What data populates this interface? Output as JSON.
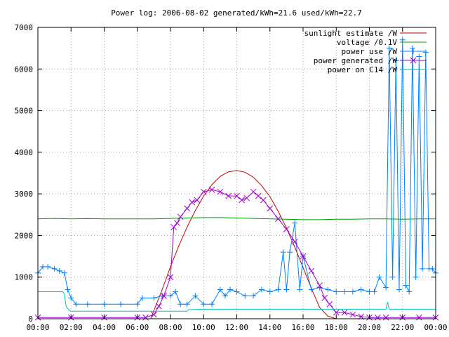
{
  "chart_data": {
    "type": "line",
    "title": "Power log: 2006-08-02 generated/kWh=21.6 used/kWh=22.7",
    "xlabel": "",
    "ylabel": "",
    "xlim": [
      0,
      24
    ],
    "ylim": [
      0,
      7000
    ],
    "grid": true,
    "legend_position": "top-right",
    "x_ticks": [
      {
        "value": 0,
        "label": "00:00"
      },
      {
        "value": 2,
        "label": "02:00"
      },
      {
        "value": 4,
        "label": "04:00"
      },
      {
        "value": 6,
        "label": "06:00"
      },
      {
        "value": 8,
        "label": "08:00"
      },
      {
        "value": 10,
        "label": "10:00"
      },
      {
        "value": 12,
        "label": "12:00"
      },
      {
        "value": 14,
        "label": "14:00"
      },
      {
        "value": 16,
        "label": "16:00"
      },
      {
        "value": 18,
        "label": "18:00"
      },
      {
        "value": 20,
        "label": "20:00"
      },
      {
        "value": 22,
        "label": "22:00"
      },
      {
        "value": 24,
        "label": "00:00"
      }
    ],
    "y_ticks": [
      {
        "value": 0,
        "label": "0"
      },
      {
        "value": 1000,
        "label": "1000"
      },
      {
        "value": 2000,
        "label": "2000"
      },
      {
        "value": 3000,
        "label": "3000"
      },
      {
        "value": 4000,
        "label": "4000"
      },
      {
        "value": 5000,
        "label": "5000"
      },
      {
        "value": 6000,
        "label": "6000"
      },
      {
        "value": 7000,
        "label": "7000"
      }
    ],
    "series": [
      {
        "name": "sunlight estimate /W",
        "color": "#cc0000",
        "style": "line",
        "x": [
          6.8,
          7.5,
          8.0,
          8.5,
          9.0,
          9.5,
          10.0,
          10.5,
          11.0,
          11.5,
          12.0,
          12.5,
          13.0,
          13.5,
          14.0,
          14.5,
          15.0,
          15.5,
          16.0,
          16.5,
          17.0,
          17.5,
          18.0
        ],
        "y": [
          0,
          700,
          1250,
          1750,
          2200,
          2600,
          2950,
          3220,
          3420,
          3530,
          3560,
          3520,
          3400,
          3200,
          2930,
          2580,
          2180,
          1720,
          1230,
          730,
          270,
          60,
          0
        ]
      },
      {
        "name": "voltage /0.1V",
        "color": "#00a000",
        "style": "line",
        "x": [
          0,
          1,
          2,
          3,
          4,
          5,
          6,
          7,
          8,
          9,
          10,
          11,
          12,
          13,
          14,
          15,
          16,
          17,
          18,
          19,
          20,
          21,
          22,
          23,
          24
        ],
        "y": [
          2400,
          2410,
          2400,
          2405,
          2400,
          2400,
          2400,
          2400,
          2410,
          2420,
          2430,
          2430,
          2420,
          2410,
          2400,
          2390,
          2380,
          2380,
          2390,
          2390,
          2400,
          2400,
          2390,
          2400,
          2400
        ]
      },
      {
        "name": "power use /W",
        "color": "#0080ff",
        "style": "linespoints",
        "x": [
          0,
          0.3,
          0.6,
          1.0,
          1.3,
          1.6,
          1.8,
          2.0,
          2.3,
          3.0,
          4.0,
          5.0,
          6.0,
          6.3,
          7.0,
          7.5,
          8.0,
          8.3,
          8.6,
          9.0,
          9.5,
          10.0,
          10.5,
          11.0,
          11.3,
          11.6,
          12.0,
          12.5,
          13.0,
          13.5,
          14.0,
          14.5,
          14.8,
          15.0,
          15.2,
          15.5,
          15.8,
          16.0,
          16.5,
          17.0,
          17.5,
          18.0,
          18.5,
          19.0,
          19.5,
          20.0,
          20.3,
          20.6,
          21.0,
          21.2,
          21.4,
          21.6,
          21.8,
          22.0,
          22.2,
          22.4,
          22.6,
          22.8,
          23.0,
          23.2,
          23.4,
          23.6,
          23.8,
          24.0
        ],
        "y": [
          1100,
          1250,
          1250,
          1200,
          1150,
          1100,
          700,
          500,
          350,
          350,
          350,
          350,
          350,
          500,
          500,
          550,
          550,
          650,
          350,
          350,
          550,
          350,
          350,
          700,
          550,
          700,
          650,
          550,
          550,
          700,
          650,
          700,
          1600,
          700,
          1600,
          2300,
          700,
          1500,
          700,
          750,
          700,
          650,
          650,
          650,
          700,
          650,
          650,
          1000,
          750,
          6500,
          1000,
          6200,
          700,
          6700,
          800,
          650,
          6500,
          1000,
          6300,
          1200,
          6400,
          1200,
          1200,
          1100
        ]
      },
      {
        "name": "power generated /W",
        "color": "#a000d0",
        "style": "linespoints",
        "x": [
          0,
          2,
          4,
          6,
          6.5,
          7.0,
          7.3,
          7.6,
          8.0,
          8.2,
          8.4,
          8.6,
          9.0,
          9.3,
          9.6,
          10.0,
          10.5,
          11.0,
          11.5,
          12.0,
          12.3,
          12.6,
          13.0,
          13.3,
          13.6,
          14.0,
          14.5,
          15.0,
          15.5,
          16.0,
          16.5,
          17.0,
          17.3,
          17.6,
          18.0,
          18.5,
          19.0,
          19.5,
          20.0,
          20.5,
          21.0,
          22.0,
          23.0,
          24.0
        ],
        "y": [
          30,
          30,
          30,
          30,
          30,
          100,
          300,
          550,
          1000,
          2200,
          2300,
          2450,
          2650,
          2800,
          2850,
          3050,
          3100,
          3050,
          2950,
          2950,
          2850,
          2900,
          3050,
          2950,
          2850,
          2650,
          2400,
          2150,
          1850,
          1500,
          1150,
          800,
          500,
          350,
          150,
          150,
          100,
          50,
          30,
          30,
          30,
          30,
          30,
          30
        ]
      },
      {
        "name": "power on C14 /W",
        "color": "#00c0c0",
        "style": "line",
        "x": [
          0,
          1.5,
          1.6,
          1.7,
          1.9,
          2.0,
          9.0,
          9.1,
          10.0,
          11.0,
          12.0,
          13.0,
          14.0,
          15.0,
          16.0,
          17.0,
          18.0,
          19.0,
          20.0,
          21.0,
          21.1,
          21.2,
          21.4,
          21.5,
          22.0,
          23.0,
          24.0
        ],
        "y": [
          650,
          650,
          600,
          300,
          200,
          180,
          180,
          220,
          230,
          230,
          230,
          230,
          230,
          230,
          230,
          230,
          230,
          230,
          230,
          230,
          400,
          230,
          230,
          230,
          230,
          230,
          230
        ]
      }
    ]
  }
}
